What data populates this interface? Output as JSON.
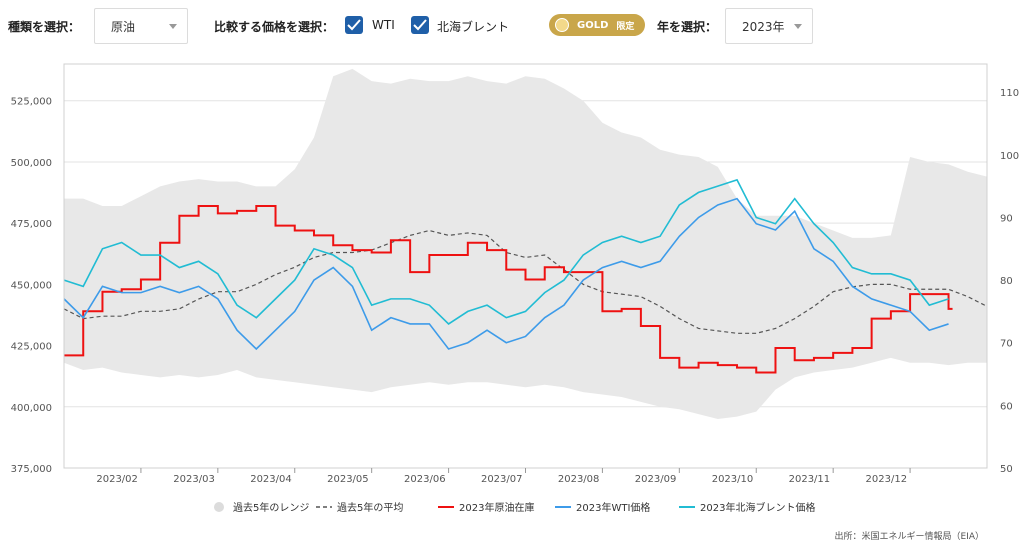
{
  "toolbar": {
    "type_label": "種類を選択：",
    "type_value": "原油",
    "compare_label": "比較する価格を選択：",
    "wti_label": "WTI",
    "brent_label": "北海ブレント",
    "gold_label": "GOLD",
    "gold_badge": "限定",
    "year_label": "年を選択：",
    "year_value": "2023年"
  },
  "source": "出所：米国エネルギー情報局（EIA）",
  "colors": {
    "range": "#e8e8e8",
    "average": "#555555",
    "inventory": "#ee1111",
    "wti": "#3d9be9",
    "brent": "#21bcd3",
    "gold": "#c9a64a",
    "checkbox": "#1f5fa8"
  },
  "chart_data": {
    "type": "line",
    "x_ticks": [
      "2023/02",
      "2023/03",
      "2023/04",
      "2023/05",
      "2023/06",
      "2023/07",
      "2023/08",
      "2023/09",
      "2023/10",
      "2023/11",
      "2023/12"
    ],
    "y_left": {
      "ticks": [
        375000,
        400000,
        425000,
        450000,
        475000,
        500000,
        525000
      ],
      "tick_labels": [
        "375,000",
        "400,000",
        "425,000",
        "450,000",
        "475,000",
        "500,000",
        "525,000"
      ],
      "range": [
        375000,
        540000
      ]
    },
    "y_right": {
      "ticks": [
        50,
        60,
        70,
        80,
        90,
        100,
        110
      ],
      "tick_labels": [
        "50",
        "60",
        "70",
        "80",
        "90",
        "100",
        "110"
      ],
      "range": [
        50,
        114.5
      ]
    },
    "legend": {
      "placement": "bottom",
      "items": [
        {
          "key": "range",
          "label": "過去5年のレンジ"
        },
        {
          "key": "average",
          "label": "過去5年の平均"
        },
        {
          "key": "inventory",
          "label": "2023年原油在庫"
        },
        {
          "key": "wti",
          "label": "2023年WTI価格"
        },
        {
          "key": "brent",
          "label": "2023年北海ブレント価格"
        }
      ]
    },
    "series_range_weekly": {
      "months": [
        1,
        1.25,
        1.5,
        1.75,
        2,
        2.25,
        2.5,
        2.75,
        3,
        3.25,
        3.5,
        3.75,
        4,
        4.25,
        4.5,
        4.75,
        5,
        5.25,
        5.5,
        5.75,
        6,
        6.25,
        6.5,
        6.75,
        7,
        7.25,
        7.5,
        7.75,
        8,
        8.25,
        8.5,
        8.75,
        9,
        9.25,
        9.5,
        9.75,
        10,
        10.25,
        10.5,
        10.75,
        11,
        11.25,
        11.5,
        11.75,
        12,
        12.25,
        12.5,
        12.75,
        13
      ],
      "low": [
        418000,
        415000,
        416000,
        414000,
        413000,
        412000,
        413000,
        412000,
        413000,
        415000,
        412000,
        411000,
        410000,
        409000,
        408000,
        407000,
        406000,
        408000,
        409000,
        410000,
        409000,
        410000,
        410000,
        409000,
        408000,
        409000,
        408000,
        406000,
        405000,
        404000,
        402000,
        400000,
        399000,
        397000,
        395000,
        396000,
        398000,
        407000,
        412000,
        414000,
        415000,
        416000,
        418000,
        420000,
        418000,
        418000,
        417000,
        418000,
        418000
      ],
      "high": [
        485000,
        485000,
        482000,
        482000,
        486000,
        490000,
        492000,
        493000,
        492000,
        492000,
        490000,
        490000,
        497000,
        510000,
        535000,
        538000,
        533000,
        532000,
        534000,
        533000,
        533000,
        535000,
        533000,
        532000,
        535000,
        534000,
        530000,
        525000,
        516000,
        512000,
        510000,
        505000,
        503000,
        502000,
        498000,
        485000,
        478000,
        478000,
        478000,
        475000,
        472000,
        469000,
        469000,
        470000,
        502000,
        500000,
        499000,
        496000,
        494000
      ]
    },
    "series_average_weekly": {
      "months": [
        1,
        1.25,
        1.5,
        1.75,
        2,
        2.25,
        2.5,
        2.75,
        3,
        3.25,
        3.5,
        3.75,
        4,
        4.25,
        4.5,
        4.75,
        5,
        5.25,
        5.5,
        5.75,
        6,
        6.25,
        6.5,
        6.75,
        7,
        7.25,
        7.5,
        7.75,
        8,
        8.25,
        8.5,
        8.75,
        9,
        9.25,
        9.5,
        9.75,
        10,
        10.25,
        10.5,
        10.75,
        11,
        11.25,
        11.5,
        11.75,
        12,
        12.25,
        12.5,
        12.75,
        13
      ],
      "values": [
        440000,
        436000,
        437000,
        437000,
        439000,
        439000,
        440000,
        444000,
        447000,
        447000,
        450000,
        454000,
        457000,
        461000,
        463000,
        463000,
        464000,
        467000,
        470000,
        472000,
        470000,
        471000,
        470000,
        463000,
        461000,
        462000,
        456000,
        450000,
        447000,
        446000,
        445000,
        441000,
        436000,
        432000,
        431000,
        430000,
        430000,
        432000,
        436000,
        441000,
        447000,
        449000,
        450000,
        450000,
        448000,
        448000,
        448000,
        445000,
        441000
      ]
    },
    "series_inventory_weekly": {
      "months": [
        1,
        1.25,
        1.5,
        1.75,
        2,
        2.25,
        2.5,
        2.75,
        3,
        3.25,
        3.5,
        3.75,
        4,
        4.25,
        4.5,
        4.75,
        5,
        5.25,
        5.5,
        5.75,
        6,
        6.25,
        6.5,
        6.75,
        7,
        7.25,
        7.5,
        7.75,
        8,
        8.25,
        8.5,
        8.75,
        9,
        9.25,
        9.5,
        9.75,
        10,
        10.25,
        10.5,
        10.75,
        11,
        11.25,
        11.5,
        11.75,
        12,
        12.25,
        12.5
      ],
      "values": [
        421000,
        439000,
        447000,
        448000,
        452000,
        467000,
        478000,
        482000,
        479000,
        480000,
        482000,
        474000,
        472000,
        470000,
        466000,
        464000,
        463000,
        468000,
        455000,
        462000,
        462000,
        467000,
        464000,
        456000,
        452000,
        457000,
        455000,
        455000,
        439000,
        440000,
        433000,
        420000,
        416000,
        418000,
        417000,
        416000,
        414000,
        424000,
        419000,
        420000,
        422000,
        424000,
        436000,
        439000,
        446000,
        446000,
        440000
      ]
    },
    "series_wti_weekly": {
      "months": [
        1,
        1.25,
        1.5,
        1.75,
        2,
        2.25,
        2.5,
        2.75,
        3,
        3.25,
        3.5,
        3.75,
        4,
        4.25,
        4.5,
        4.75,
        5,
        5.25,
        5.5,
        5.75,
        6,
        6.25,
        6.5,
        6.75,
        7,
        7.25,
        7.5,
        7.75,
        8,
        8.25,
        8.5,
        8.75,
        9,
        9.25,
        9.5,
        9.75,
        10,
        10.25,
        10.5,
        10.75,
        11,
        11.25,
        11.5,
        11.75,
        12,
        12.25,
        12.5
      ],
      "values": [
        77,
        74,
        79,
        78,
        78,
        79,
        78,
        79,
        77,
        72,
        69,
        72,
        75,
        80,
        82,
        79,
        72,
        74,
        73,
        73,
        69,
        70,
        72,
        70,
        71,
        74,
        76,
        80,
        82,
        83,
        82,
        83,
        87,
        90,
        92,
        93,
        89,
        88,
        91,
        85,
        83,
        79,
        77,
        76,
        75,
        72,
        73
      ]
    },
    "series_brent_weekly": {
      "months": [
        1,
        1.25,
        1.5,
        1.75,
        2,
        2.25,
        2.5,
        2.75,
        3,
        3.25,
        3.5,
        3.75,
        4,
        4.25,
        4.5,
        4.75,
        5,
        5.25,
        5.5,
        5.75,
        6,
        6.25,
        6.5,
        6.75,
        7,
        7.25,
        7.5,
        7.75,
        8,
        8.25,
        8.5,
        8.75,
        9,
        9.25,
        9.5,
        9.75,
        10,
        10.25,
        10.5,
        10.75,
        11,
        11.25,
        11.5,
        11.75,
        12,
        12.25,
        12.5
      ],
      "values": [
        80,
        79,
        85,
        86,
        84,
        84,
        82,
        83,
        81,
        76,
        74,
        77,
        80,
        85,
        84,
        82,
        76,
        77,
        77,
        76,
        73,
        75,
        76,
        74,
        75,
        78,
        80,
        84,
        86,
        87,
        86,
        87,
        92,
        94,
        95,
        96,
        90,
        89,
        93,
        89,
        86,
        82,
        81,
        81,
        80,
        76,
        77
      ]
    }
  }
}
